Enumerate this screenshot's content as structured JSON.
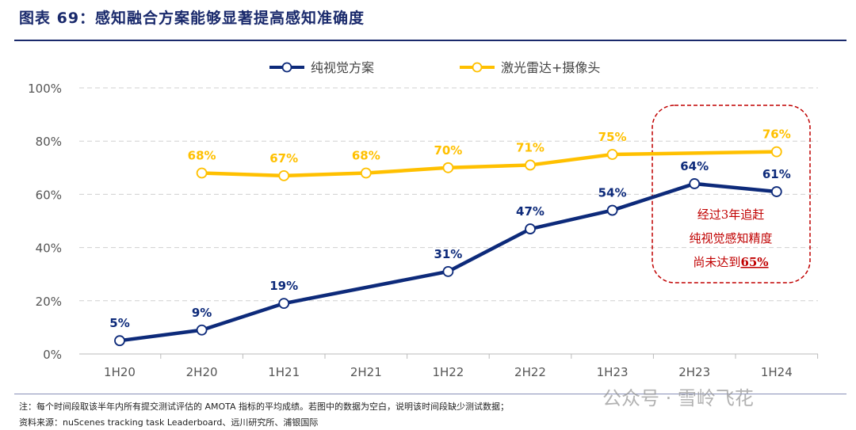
{
  "title": "图表 69：感知融合方案能够显著提高感知准确度",
  "chart_data": {
    "type": "line",
    "categories": [
      "1H20",
      "2H20",
      "1H21",
      "2H21",
      "1H22",
      "2H22",
      "1H23",
      "2H23",
      "1H24"
    ],
    "series": [
      {
        "name": "纯视觉方案",
        "color": "#0d2a7a",
        "values": [
          5,
          9,
          19,
          null,
          31,
          47,
          54,
          64,
          61
        ],
        "labels": [
          "5%",
          "9%",
          "19%",
          "",
          "31%",
          "47%",
          "54%",
          "64%",
          "61%"
        ]
      },
      {
        "name": "激光雷达+摄像头",
        "color": "#ffc000",
        "values": [
          null,
          68,
          67,
          68,
          70,
          71,
          75,
          null,
          76
        ],
        "labels": [
          "",
          "68%",
          "67%",
          "68%",
          "70%",
          "71%",
          "75%",
          "",
          "76%"
        ]
      }
    ],
    "ylim": [
      0,
      100
    ],
    "yticks": [
      "0%",
      "20%",
      "40%",
      "60%",
      "80%",
      "100%"
    ],
    "grid": true,
    "legend": "top",
    "annotation": {
      "lines": [
        "经过3年追赶",
        "纯视觉感知精度",
        "尚未达到"
      ],
      "highlight": "65%",
      "color": "#c00000"
    }
  },
  "notes": {
    "note": "注：每个时间段取该半年内所有提交测试评估的 AMOTA 指标的平均成绩。若图中的数据为空白，说明该时间段缺少测试数据；",
    "source": "资料来源：nuScenes tracking task Leaderboard、远川研究所、浦银国际"
  },
  "watermark": "公众号 · 雪岭飞花"
}
